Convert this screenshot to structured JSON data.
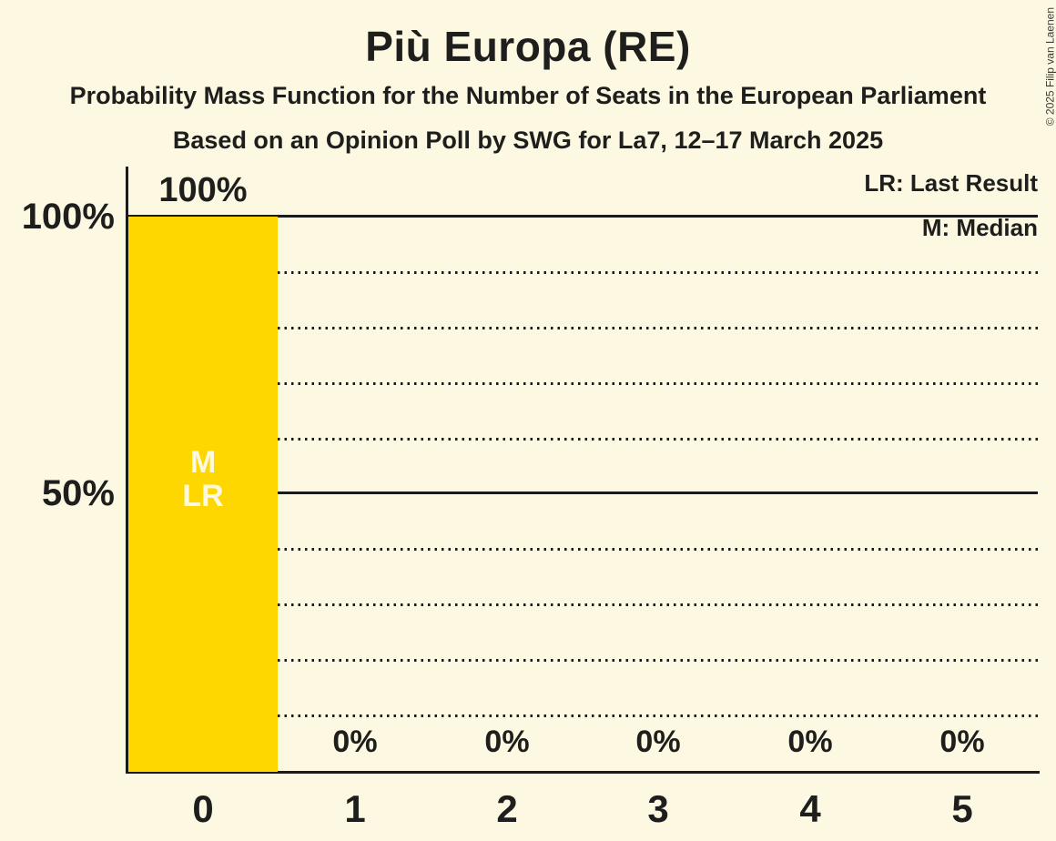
{
  "title": "Più Europa (RE)",
  "subtitle1": "Probability Mass Function for the Number of Seats in the European Parliament",
  "subtitle2": "Based on an Opinion Poll by SWG for La7, 12–17 March 2025",
  "copyright": "© 2025 Filip van Laenen",
  "legend": {
    "lr": "LR: Last Result",
    "m": "M: Median"
  },
  "y_axis": {
    "labels": [
      "100%",
      "50%"
    ]
  },
  "colors": {
    "background": "#fdf8e2",
    "bar": "#ffd700",
    "text": "#1e1e1c",
    "bar_annotation_text": "#fdf8e2",
    "gridline": "#1a1a18"
  },
  "chart_data": {
    "type": "bar",
    "title": "Più Europa (RE)",
    "categories": [
      "0",
      "1",
      "2",
      "3",
      "4",
      "5"
    ],
    "values": [
      100,
      0,
      0,
      0,
      0,
      0
    ],
    "value_labels": [
      "100%",
      "0%",
      "0%",
      "0%",
      "0%",
      "0%"
    ],
    "ylabel": "",
    "xlabel": "",
    "ylim": [
      0,
      100
    ],
    "ytick_labels_shown": [
      "100%",
      "50%"
    ],
    "gridlines": {
      "solid_at": [
        100,
        50
      ],
      "dotted_at": [
        90,
        80,
        70,
        60,
        40,
        30,
        20,
        10
      ]
    },
    "legend_position": "top-right",
    "annotations": {
      "median_label": "M",
      "last_result_label": "LR",
      "median_seats": 0,
      "last_result_seats": 0
    }
  }
}
